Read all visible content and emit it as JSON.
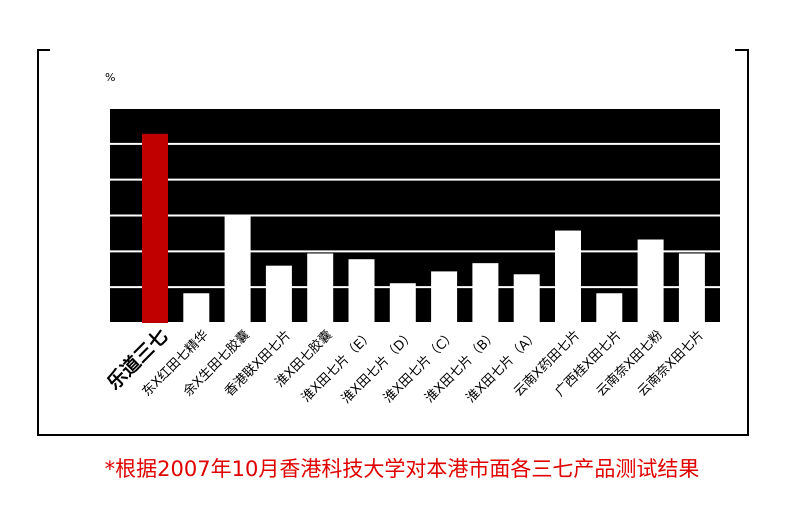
{
  "chart_data": {
    "type": "bar",
    "y_label": "%",
    "categories": [
      "乐道三七",
      "东X红田七精华",
      "余X生田七胶囊",
      "香港联X田七片",
      "淮X田七胶囊",
      "淮X田七片（E）",
      "淮X田七片（D）",
      "淮X田七片（C）",
      "淮X田七片（B）",
      "淮X田七片（A）",
      "云南X药田七片",
      "广西桂X田七片",
      "云南奈X田七粉",
      "云南奈X田七片"
    ],
    "values": [
      5.28,
      0.83,
      3.0,
      1.6,
      1.94,
      1.78,
      1.11,
      1.44,
      1.67,
      1.36,
      2.58,
      0.83,
      2.33,
      1.94
    ],
    "colors": [
      "#c00000",
      "#ffffff",
      "#ffffff",
      "#ffffff",
      "#ffffff",
      "#ffffff",
      "#ffffff",
      "#ffffff",
      "#ffffff",
      "#ffffff",
      "#ffffff",
      "#ffffff",
      "#ffffff",
      "#ffffff"
    ],
    "ylim": [
      0,
      6
    ],
    "yticks": [
      0,
      1,
      2,
      3,
      4,
      5,
      6
    ],
    "grid": true,
    "footnote": "*根据2007年10月香港科技大学对本港市面各三七产品测试结果"
  }
}
